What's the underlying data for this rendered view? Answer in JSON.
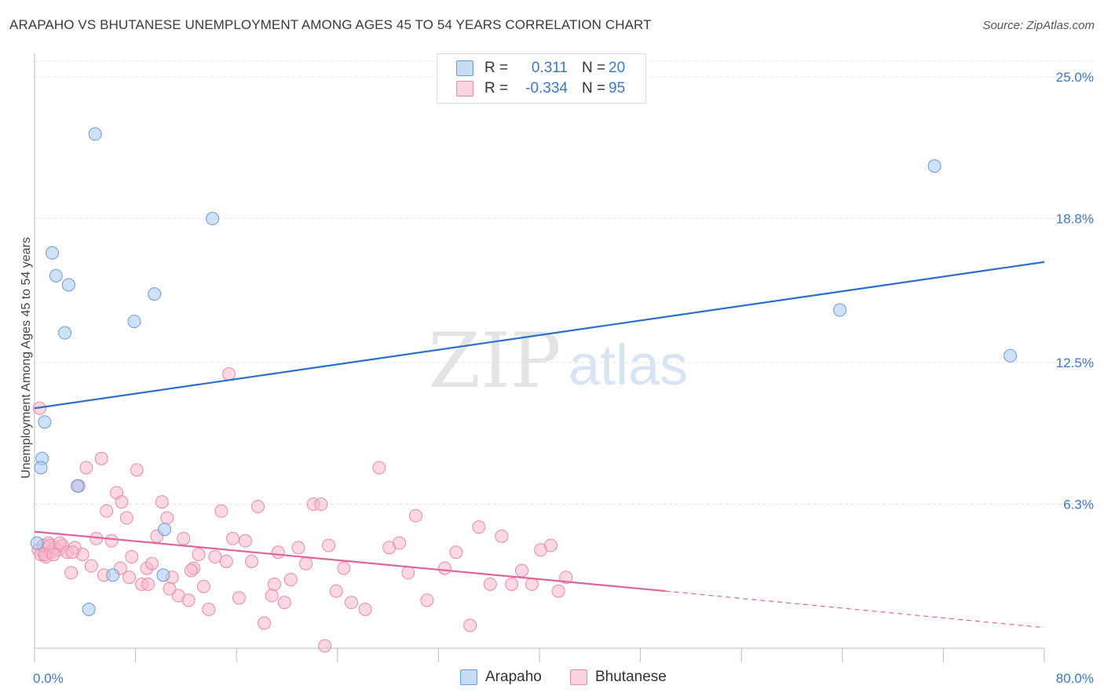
{
  "title": "ARAPAHO VS BHUTANESE UNEMPLOYMENT AMONG AGES 45 TO 54 YEARS CORRELATION CHART",
  "source": "Source: ZipAtlas.com",
  "watermark": {
    "zip": "ZIP",
    "atlas": "atlas"
  },
  "legend": {
    "rows": [
      {
        "r_label": "R =",
        "r_value": "0.311",
        "n_label": "N =",
        "n_value": "20",
        "color": "#a8c8f0",
        "border": "#6a9bd8"
      },
      {
        "r_label": "R =",
        "r_value": "-0.334",
        "n_label": "N =",
        "n_value": "95",
        "color": "#f7b8cb",
        "border": "#e88aa8"
      }
    ]
  },
  "bottom_legend": [
    {
      "label": "Arapaho",
      "color": "#a8c8f0",
      "border": "#6a9bd8"
    },
    {
      "label": "Bhutanese",
      "color": "#f7b8cb",
      "border": "#e88aa8"
    }
  ],
  "chart_data": {
    "type": "scatter",
    "title": "ARAPAHO VS BHUTANESE UNEMPLOYMENT AMONG AGES 45 TO 54 YEARS CORRELATION CHART",
    "xlabel": "",
    "ylabel": "Unemployment Among Ages 45 to 54 years",
    "xlim": [
      0,
      80
    ],
    "ylim": [
      0,
      25
    ],
    "x_tick_labels": [
      "0.0%",
      "80.0%"
    ],
    "y_ticks": [
      6.3,
      12.5,
      18.8,
      25.0
    ],
    "y_tick_labels": [
      "6.3%",
      "12.5%",
      "18.8%",
      "25.0%"
    ],
    "grid": true,
    "legend_position": "top-center",
    "series": [
      {
        "name": "Arapaho",
        "color": "#a8c8f0",
        "stroke": "#6a9bd8",
        "trend_color": "#2b6fce",
        "x": [
          4.8,
          14.1,
          1.4,
          1.7,
          2.7,
          9.5,
          7.9,
          2.4,
          0.6,
          0.5,
          0.8,
          3.4,
          10.3,
          6.2,
          4.3,
          10.2,
          71.3,
          63.8,
          77.3,
          0.2
        ],
        "y": [
          22.5,
          18.8,
          17.3,
          16.3,
          15.9,
          15.5,
          14.3,
          13.8,
          8.3,
          7.9,
          9.9,
          7.1,
          5.2,
          3.2,
          1.7,
          3.2,
          21.1,
          14.8,
          12.8,
          4.6
        ],
        "trend": {
          "x": [
            0,
            80
          ],
          "y": [
            10.5,
            16.9
          ]
        }
      },
      {
        "name": "Bhutanese",
        "color": "#f7b8cb",
        "stroke": "#e88aa8",
        "trend_color": "#e0649a",
        "x": [
          0.3,
          0.5,
          0.7,
          0.9,
          1.1,
          1.3,
          1.6,
          1.9,
          2.2,
          2.6,
          2.9,
          3.2,
          3.5,
          3.8,
          4.1,
          4.5,
          4.9,
          5.3,
          5.7,
          6.1,
          6.5,
          6.9,
          7.3,
          7.7,
          8.1,
          8.5,
          8.9,
          9.3,
          9.7,
          10.1,
          10.5,
          10.9,
          11.4,
          11.8,
          12.2,
          12.6,
          13.0,
          13.4,
          13.8,
          14.3,
          14.8,
          15.2,
          15.7,
          16.2,
          16.7,
          17.2,
          17.7,
          18.2,
          18.8,
          19.3,
          19.8,
          20.3,
          20.9,
          21.5,
          22.1,
          22.7,
          23.3,
          23.9,
          24.5,
          25.1,
          26.2,
          27.3,
          28.1,
          28.9,
          29.6,
          30.2,
          31.1,
          32.5,
          33.4,
          34.5,
          35.2,
          36.1,
          37.0,
          37.8,
          38.6,
          39.4,
          40.1,
          40.9,
          41.5,
          42.1,
          0.8,
          1.2,
          2.0,
          3.0,
          5.5,
          6.8,
          7.5,
          9.0,
          10.7,
          12.4,
          15.4,
          19.0,
          23.0,
          0.4,
          1.5
        ],
        "y": [
          4.3,
          4.1,
          4.5,
          4.0,
          4.6,
          4.2,
          4.4,
          4.3,
          4.5,
          4.2,
          3.3,
          4.4,
          7.1,
          4.1,
          7.9,
          3.6,
          4.8,
          8.3,
          6.0,
          4.7,
          6.8,
          6.4,
          5.7,
          4.0,
          7.8,
          2.8,
          3.5,
          3.7,
          4.9,
          6.4,
          5.7,
          3.1,
          2.3,
          4.8,
          2.1,
          3.5,
          4.1,
          2.7,
          1.7,
          4.0,
          6.0,
          3.8,
          4.8,
          2.2,
          4.7,
          3.8,
          6.2,
          1.1,
          2.3,
          4.2,
          2.0,
          3.0,
          4.4,
          3.7,
          6.3,
          6.3,
          4.5,
          2.5,
          3.5,
          2.0,
          1.7,
          7.9,
          4.4,
          4.6,
          3.3,
          5.8,
          2.1,
          3.5,
          4.2,
          1.0,
          5.3,
          2.8,
          4.9,
          2.8,
          3.4,
          2.8,
          4.3,
          4.5,
          2.5,
          3.1,
          4.1,
          4.5,
          4.6,
          4.2,
          3.2,
          3.5,
          3.1,
          2.8,
          2.6,
          3.4,
          12.0,
          2.8,
          0.1,
          10.5,
          4.1
        ],
        "trend": {
          "x": [
            0,
            50
          ],
          "y": [
            5.1,
            2.5
          ]
        },
        "trend_dashed": {
          "x": [
            50,
            80
          ],
          "y": [
            2.5,
            0.9
          ]
        }
      }
    ]
  }
}
